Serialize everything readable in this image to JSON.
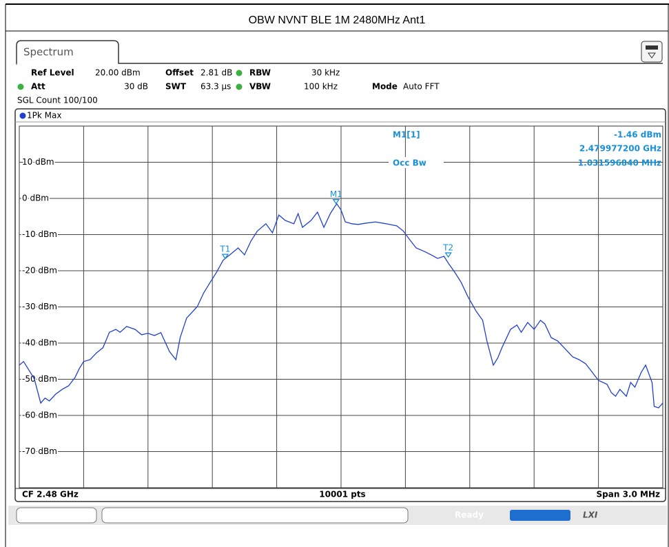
{
  "chart_data": {
    "type": "line",
    "title": "OBW NVNT BLE 1M 2480MHz Ant1",
    "xlim": [
      2478.5,
      2481.5
    ],
    "ylim": [
      -80,
      20
    ],
    "yticks": [
      {
        "value": 10,
        "label": "10 dBm"
      },
      {
        "value": 0,
        "label": "0 dBm"
      },
      {
        "value": -10,
        "label": "-10 dBm"
      },
      {
        "value": -20,
        "label": "-20 dBm"
      },
      {
        "value": -30,
        "label": "-30 dBm"
      },
      {
        "value": -40,
        "label": "-40 dBm"
      },
      {
        "value": -50,
        "label": "-50 dBm"
      },
      {
        "value": -60,
        "label": "-60 dBm"
      },
      {
        "value": -70,
        "label": "-70 dBm"
      }
    ],
    "grid": true,
    "series": [
      {
        "name": "1Pk Max",
        "color": "#1f3fcf",
        "x": [
          2478.5,
          2478.52,
          2478.54,
          2478.57,
          2478.6,
          2478.62,
          2478.64,
          2478.67,
          2478.7,
          2478.73,
          2478.76,
          2478.78,
          2478.8,
          2478.83,
          2478.86,
          2478.89,
          2478.92,
          2478.95,
          2478.97,
          2479.0,
          2479.04,
          2479.07,
          2479.1,
          2479.13,
          2479.16,
          2479.2,
          2479.23,
          2479.25,
          2479.28,
          2479.33,
          2479.36,
          2479.39,
          2479.42,
          2479.45,
          2479.49,
          2479.52,
          2479.55,
          2479.58,
          2479.61,
          2479.65,
          2479.68,
          2479.71,
          2479.74,
          2479.78,
          2479.8,
          2479.82,
          2479.86,
          2479.89,
          2479.92,
          2479.95,
          2479.97,
          2479.98,
          2480.0,
          2480.02,
          2480.05,
          2480.08,
          2480.11,
          2480.16,
          2480.21,
          2480.26,
          2480.29,
          2480.32,
          2480.35,
          2480.39,
          2480.42,
          2480.45,
          2480.48,
          2480.5,
          2480.53,
          2480.56,
          2480.59,
          2480.63,
          2480.66,
          2480.68,
          2480.71,
          2480.73,
          2480.75,
          2480.79,
          2480.82,
          2480.84,
          2480.87,
          2480.9,
          2480.93,
          2480.95,
          2480.98,
          2481.01,
          2481.04,
          2481.08,
          2481.11,
          2481.14,
          2481.17,
          2481.2,
          2481.24,
          2481.26,
          2481.28,
          2481.3,
          2481.33,
          2481.35,
          2481.37,
          2481.4,
          2481.42,
          2481.45,
          2481.46,
          2481.48,
          2481.5
        ],
        "values": [
          -46.1,
          -45.1,
          -47,
          -49.9,
          -56.6,
          -55.2,
          -56,
          -54.1,
          -52.8,
          -51.8,
          -49.5,
          -47,
          -45.1,
          -44.6,
          -42.7,
          -41.3,
          -37,
          -36.2,
          -37,
          -35.4,
          -36.2,
          -37.7,
          -37.3,
          -37.9,
          -37.1,
          -42.3,
          -44.6,
          -38.5,
          -33.1,
          -29.9,
          -26.1,
          -23.2,
          -20.4,
          -17.1,
          -15.2,
          -13.7,
          -15.6,
          -11.8,
          -9,
          -7,
          -9.5,
          -4.6,
          -6.1,
          -7,
          -4.2,
          -8,
          -6.1,
          -3.8,
          -8,
          -4.2,
          -2.3,
          -1.5,
          -3.2,
          -6.5,
          -7,
          -7.2,
          -6.9,
          -6.5,
          -7,
          -7.6,
          -9,
          -11.4,
          -13.7,
          -14.7,
          -15.6,
          -16.6,
          -16,
          -17.9,
          -20.4,
          -23.2,
          -27,
          -31.2,
          -33.7,
          -39.4,
          -46.1,
          -44.2,
          -41.3,
          -36.2,
          -35,
          -37,
          -34.3,
          -36.2,
          -33.7,
          -34.7,
          -38.5,
          -39.4,
          -41.3,
          -43.8,
          -44.6,
          -45.7,
          -48,
          -50.3,
          -51.4,
          -53.7,
          -54.7,
          -52.8,
          -54.7,
          -50.9,
          -52.2,
          -48,
          -46.1,
          -50.9,
          -57.5,
          -57.9,
          -56.6
        ]
      }
    ],
    "markers": [
      {
        "label": "M1",
        "x": 2479.977,
        "y": -1.46
      },
      {
        "label": "T1",
        "x": 2479.46,
        "y": -16.6
      },
      {
        "label": "T2",
        "x": 2480.5,
        "y": -16.2
      }
    ]
  },
  "tab": "Spectrum",
  "settings": {
    "ref_level_label": "Ref Level",
    "ref_level": "20.00 dBm",
    "offset_label": "Offset",
    "offset": "2.81 dB",
    "rbw_label": "RBW",
    "rbw": "30 kHz",
    "att_label": "Att",
    "att": "30 dB",
    "swt_label": "SWT",
    "swt": "63.3 µs",
    "vbw_label": "VBW",
    "vbw": "100 kHz",
    "mode_label": "Mode",
    "mode": "Auto FFT",
    "sgl_count": "SGL Count 100/100"
  },
  "marker_info": {
    "name": "M1[1]",
    "level": "-1.46 dBm",
    "freq": "2.479977200 GHz",
    "occ_label": "Occ Bw",
    "occ_value": "1.031596840 MHz"
  },
  "footer": {
    "cf": "CF 2.48 GHz",
    "points": "10001 pts",
    "span": "Span 3.0 MHz"
  },
  "status": {
    "state": "Ready",
    "lxi": "LXI"
  }
}
